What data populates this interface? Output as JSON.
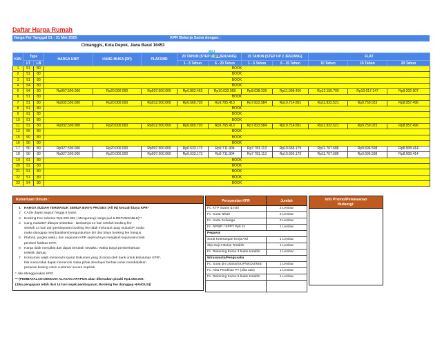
{
  "header": {
    "title": "Daftar Harga Rumah",
    "date_banner": "Harga Per Tanggal 01 - 31 Mei 2025",
    "kpr_label": "KPR Bekerja Sama dengan :",
    "address": "Cimanggis, Kota Depok, Jawa Barat 16453",
    "logo_text": "BSI"
  },
  "colors": {
    "banner_blue": "#4a86e8",
    "row_yellow": "#ffff00",
    "section_orange": "#c05a1e",
    "title_red": "#e02417",
    "logo_teal": "#00a39b"
  },
  "price_table": {
    "headers": {
      "kav": "KAV",
      "type": "Type",
      "lt": "LT",
      "lb": "LB",
      "harga_unit": "HARGA UNIT",
      "uang_muka": "UANG MUKA (DP)",
      "plafond": "PLAFOND",
      "g20": "20 TAHUN (STEP UP 2 JENJANG)",
      "g15": "15 TAHUN (STEP UP 2 JENJANG)",
      "flat": "FLAT",
      "sub": [
        "1 - 5 Tahun",
        "6 - 20 Tahun",
        "1 - 5 Tahun",
        "6 - 15 Tahun",
        "10 Tahun",
        "15 Tahun",
        "20 Tahun"
      ]
    },
    "book_label": "BOOK",
    "rows": [
      {
        "kav": "1",
        "lt": "51",
        "lb": "80",
        "status": "BOOK",
        "bg": "yellow"
      },
      {
        "kav": "2",
        "lt": "51",
        "lb": "80",
        "status": "BOOK",
        "bg": "yellow"
      },
      {
        "kav": "3",
        "lt": "51",
        "lb": "80",
        "status": "BOOK",
        "bg": "yellow"
      },
      {
        "kav": "4",
        "lt": "54",
        "lb": "80",
        "status": "BOOK",
        "bg": "yellow"
      },
      {
        "kav": "5",
        "lt": "54",
        "lb": "80",
        "bg": "yellow",
        "values": [
          "Rp957.500.000",
          "Rp20.000.000",
          "Rp937.500.000",
          "Rp6.852.452",
          "Rp10.032.958",
          "Rp8.038.339",
          "Rp11.008.450",
          "Rp12.156.700",
          "Rp10.017.147",
          "Rp9.202.907"
        ]
      },
      {
        "kav": "6",
        "lt": "51",
        "lb": "80",
        "status": "BOOK",
        "bg": "yellow"
      },
      {
        "kav": "7",
        "lt": "51",
        "lb": "80",
        "bg": "yellow",
        "values": [
          "Rp932.500.000",
          "Rp20.000.000",
          "Rp912.500.000",
          "Rp6.669.720",
          "Rp9.765.413",
          "Rp7.823.984",
          "Rp10.714.891",
          "Rp11.832.521",
          "Rp9.750.023",
          "Rp8.957.496"
        ]
      },
      {
        "kav": "8",
        "lt": "51",
        "lb": "80",
        "status": "BOOK",
        "bg": "yellow"
      },
      {
        "kav": "9",
        "lt": "61",
        "lb": "80",
        "status": "BOOK",
        "bg": "yellow"
      },
      {
        "kav": "10",
        "lt": "51",
        "lb": "80",
        "status": "BOOK",
        "bg": "yellow"
      },
      {
        "kav": "11",
        "lt": "51",
        "lb": "80",
        "bg": "yellow",
        "values": [
          "Rp932.500.000",
          "Rp20.000.000",
          "Rp912.500.000",
          "Rp6.669.720",
          "Rp9.765.413",
          "Rp7.823.984",
          "Rp10.714.891",
          "Rp11.832.521",
          "Rp9.750.023",
          "Rp8.957.496"
        ]
      },
      {
        "kav": "12",
        "lt": "56",
        "lb": "80",
        "status": "BOOK",
        "bg": "yellow"
      },
      {
        "kav": "15",
        "lt": "50",
        "lb": "80",
        "status": "BOOK",
        "bg": "yellow"
      },
      {
        "kav": "16",
        "lt": "50",
        "lb": "80",
        "status": "BOOK",
        "bg": "yellow"
      },
      {
        "kav": "17",
        "lt": "50",
        "lb": "80",
        "bg": "white",
        "values": [
          "Rp927.500.000",
          "Rp20.000.000",
          "Rp907.500.000",
          "Rp6.633.173",
          "Rp9.711.904",
          "Rp7.781.113",
          "Rp10.656.179",
          "Rp11.767.686",
          "Rp9.696.598",
          "Rp8.908.414"
        ]
      },
      {
        "kav": "18",
        "lt": "50",
        "lb": "80",
        "bg": "white",
        "values": [
          "Rp927.500.000",
          "Rp20.000.000",
          "Rp907.500.000",
          "Rp6.633.173",
          "Rp9.711.904",
          "Rp7.781.113",
          "Rp10.656.179",
          "Rp11.767.686",
          "Rp9.696.598",
          "Rp8.908.414"
        ]
      },
      {
        "kav": "19",
        "lt": "61",
        "lb": "80",
        "status": "BOOK",
        "bg": "yellow"
      },
      {
        "kav": "20",
        "lt": "51",
        "lb": "80",
        "status": "BOOK",
        "bg": "yellow"
      },
      {
        "kav": "21",
        "lt": "51",
        "lb": "80",
        "status": "BOOK",
        "bg": "yellow"
      },
      {
        "kav": "22",
        "lt": "51",
        "lb": "80",
        "status": "BOOK",
        "bg": "yellow"
      },
      {
        "kav": "23",
        "lt": "54",
        "lb": "80",
        "status": "BOOK",
        "bg": "yellow"
      }
    ]
  },
  "ketentuan": {
    "title": "Ketentuan Umum :",
    "items": [
      {
        "num": "1",
        "bold": true,
        "lines": [
          "HARGA SUDAH TERMASUK SEMUA BIAYA PROSES (All IN) kecuali biaya KPR*"
        ]
      },
      {
        "num": "2",
        "bold": false,
        "lines": [
          "CASH dapat angsur hingga 6 bulan."
        ]
      },
      {
        "num": "3",
        "bold": false,
        "lines": [
          "Booking Fee sebesar Rp3.000.000 ( Mengurangi Harga jual & REFUNDABLE)**"
        ]
      },
      {
        "num": "4",
        "bold": false,
        "lines": [
          "Uang muka/DP dibayar selambat - lambatnya 14 hari setelah booking fee",
          "setelah 14 hari dari pembayaran booking fee tidak melunasi uang muka/DP, maka",
          "maka dianggap membatalkan/mengundurkan diri dan biaya booking fee hangus"
        ]
      },
      {
        "num": "5",
        "bold": false,
        "lines": [
          "Plafond, jangka waktu, dan angsuran KPR sepenuhnya mengikuti keputusan bank",
          "pemberi fasilitas KPR."
        ]
      },
      {
        "num": "6",
        "bold": false,
        "lines": [
          "Harga tidak mengikat dan dapat berubah sewaktu -waktu tanpa pemberitahuan",
          "terlebih dahulu."
        ]
      },
      {
        "num": "7",
        "bold": false,
        "lines": [
          "Konsumen wajib memenuhi syarat Dokumen yang di minta oleh bank untuk kebutuhan KPR*,",
          "bila mana tidak dapat memenuhi maka pihak developer berhak untuk membatalkan",
          "pesanan kavling calon customer secara sepihak."
        ]
      }
    ],
    "footnotes": [
      {
        "bold": false,
        "text": "* Jika Menggunakan KPR."
      },
      {
        "bold": true,
        "text": "** (PEMBATALAN DENGAN ALASAN APAPUN akan dikenakan pinalti Rp1.000.000."
      },
      {
        "bold": true,
        "text": "(Jika pengajuan lebih dari 14 hari sejak pembayaran, Booking fee dianggap HANGUS))"
      }
    ]
  },
  "persyaratan": {
    "header_label": "Persyaratan KPR",
    "qty_label": "Jumlah",
    "rows": [
      {
        "type": "item",
        "label": "Fc. KTP Suami & Istri",
        "qty": "2 Lembar"
      },
      {
        "type": "item",
        "label": "Fc. Surat Nikah",
        "qty": "2 Lembar"
      },
      {
        "type": "item",
        "label": "Fc. Kartu Keluarga",
        "qty": "2 Lembar"
      },
      {
        "type": "item",
        "label": "Fc. NPWP / SPPT Pph 21",
        "qty": "1 Lembar"
      },
      {
        "type": "subheader",
        "label": "Pegawai"
      },
      {
        "type": "item",
        "label": "Surat Keterangan Kerja Asli",
        "qty": "1 Lembar"
      },
      {
        "type": "item",
        "label": "Slip Gaji 3 Bulan Terakhir",
        "qty": "1 Lembar"
      },
      {
        "type": "item",
        "label": "Fc. Rekening Koran 3 bulan terakhir",
        "qty": "1 Lembar"
      },
      {
        "type": "subheader",
        "label": "Wiraswasta/Pengusaha"
      },
      {
        "type": "item",
        "label": "Fc. Surat Ijin Usaha/SIUP/SKDU/NIB",
        "qty": "1 Lembar"
      },
      {
        "type": "item",
        "label": "Fc. Akta Pendirian PT (Jika ada)",
        "qty": "1 Lembar"
      },
      {
        "type": "item",
        "label": "Fc. Rekening Koran 6 bulan terakhir",
        "qty": "1 Lembar"
      }
    ]
  },
  "info_box": {
    "title_line1": "Info Promo/Pemesanan",
    "title_line2": "Hubungi:"
  }
}
